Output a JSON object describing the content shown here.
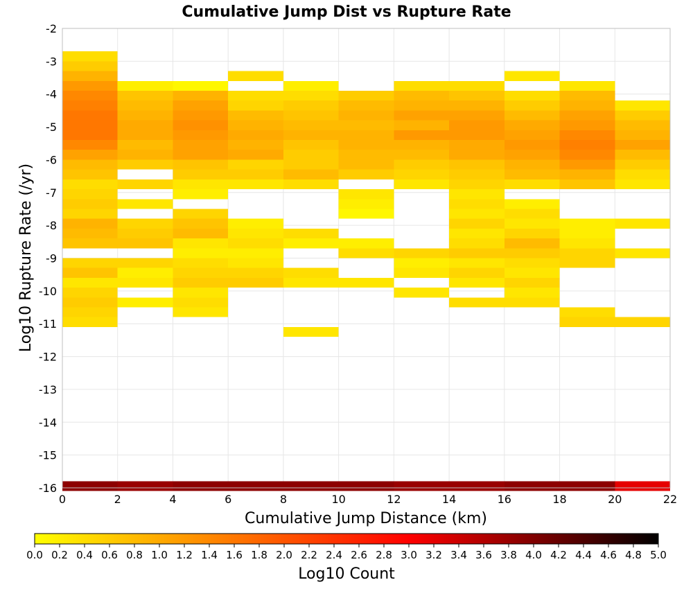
{
  "chart_data": {
    "type": "heatmap",
    "title": "Cumulative Jump Dist vs Rupture Rate",
    "xlabel": "Cumulative Jump Distance (km)",
    "ylabel": "Log10 Rupture Rate (/yr)",
    "xlim": [
      0,
      22
    ],
    "ylim": [
      -16,
      -2
    ],
    "xticks": [
      "0",
      "2",
      "4",
      "6",
      "8",
      "10",
      "12",
      "14",
      "16",
      "18",
      "20",
      "22"
    ],
    "yticks": [
      "-2",
      "-3",
      "-4",
      "-5",
      "-6",
      "-7",
      "-8",
      "-9",
      "-10",
      "-11",
      "-12",
      "-13",
      "-14",
      "-15",
      "-16"
    ],
    "x_bin_width": 2,
    "y_bin_height": 0.3,
    "grid": true,
    "colorbar": {
      "label": "Log10 Count",
      "range": [
        0,
        5
      ],
      "ticks": [
        "0.0",
        "0.2",
        "0.4",
        "0.6",
        "0.8",
        "1.0",
        "1.2",
        "1.4",
        "1.6",
        "1.8",
        "2.0",
        "2.2",
        "2.4",
        "2.6",
        "2.8",
        "3.0",
        "3.2",
        "3.4",
        "3.6",
        "3.8",
        "4.0",
        "4.2",
        "4.4",
        "4.6",
        "4.8",
        "5.0"
      ],
      "colors": [
        "#ffff00",
        "#ffaa00",
        "#ff5500",
        "#ff0000",
        "#800000",
        "#000000"
      ]
    },
    "columns": [
      {
        "x": [
          0,
          2
        ],
        "cells": [
          [
            -2.85,
            0.4
          ],
          [
            -3.15,
            0.6
          ],
          [
            -3.45,
            0.9
          ],
          [
            -3.75,
            1.2
          ],
          [
            -4.05,
            1.4
          ],
          [
            -4.35,
            1.5
          ],
          [
            -4.65,
            1.6
          ],
          [
            -4.95,
            1.6
          ],
          [
            -5.25,
            1.6
          ],
          [
            -5.55,
            1.4
          ],
          [
            -5.85,
            1.1
          ],
          [
            -6.15,
            0.8
          ],
          [
            -6.45,
            0.7
          ],
          [
            -6.75,
            0.4
          ],
          [
            -7.05,
            0.5
          ],
          [
            -7.35,
            0.6
          ],
          [
            -7.65,
            0.5
          ],
          [
            -7.95,
            0.9
          ],
          [
            -8.25,
            0.8
          ],
          [
            -8.55,
            0.7
          ],
          [
            -9.15,
            0.5
          ],
          [
            -9.45,
            0.7
          ],
          [
            -9.75,
            0.3
          ],
          [
            -10.05,
            0.5
          ],
          [
            -10.35,
            0.6
          ],
          [
            -10.65,
            0.5
          ],
          [
            -10.95,
            0.4
          ],
          [
            -15.95,
            3.9
          ]
        ]
      },
      {
        "x": [
          2,
          4
        ],
        "cells": [
          [
            -3.75,
            0.2
          ],
          [
            -4.05,
            0.7
          ],
          [
            -4.35,
            0.8
          ],
          [
            -4.65,
            0.9
          ],
          [
            -4.95,
            1.0
          ],
          [
            -5.25,
            1.0
          ],
          [
            -5.55,
            0.8
          ],
          [
            -5.85,
            0.9
          ],
          [
            -6.15,
            0.6
          ],
          [
            -6.75,
            0.5
          ],
          [
            -7.35,
            0.3
          ],
          [
            -7.95,
            0.5
          ],
          [
            -8.25,
            0.6
          ],
          [
            -8.55,
            0.7
          ],
          [
            -9.15,
            0.5
          ],
          [
            -9.45,
            0.2
          ],
          [
            -9.75,
            0.3
          ],
          [
            -10.35,
            0.2
          ],
          [
            -15.95,
            3.8
          ]
        ]
      },
      {
        "x": [
          4,
          6
        ],
        "cells": [
          [
            -3.75,
            0.1
          ],
          [
            -4.05,
            0.9
          ],
          [
            -4.35,
            1.1
          ],
          [
            -4.65,
            1.2
          ],
          [
            -4.95,
            1.3
          ],
          [
            -5.25,
            1.2
          ],
          [
            -5.55,
            1.1
          ],
          [
            -5.85,
            1.1
          ],
          [
            -6.15,
            0.7
          ],
          [
            -6.45,
            0.6
          ],
          [
            -6.75,
            0.3
          ],
          [
            -7.05,
            0.2
          ],
          [
            -7.65,
            0.5
          ],
          [
            -7.95,
            0.7
          ],
          [
            -8.25,
            0.8
          ],
          [
            -8.55,
            0.3
          ],
          [
            -8.85,
            0.2
          ],
          [
            -9.15,
            0.4
          ],
          [
            -9.45,
            0.5
          ],
          [
            -9.75,
            0.6
          ],
          [
            -10.05,
            0.3
          ],
          [
            -10.35,
            0.4
          ],
          [
            -10.65,
            0.3
          ],
          [
            -15.95,
            3.9
          ]
        ]
      },
      {
        "x": [
          6,
          8
        ],
        "cells": [
          [
            -3.45,
            0.4
          ],
          [
            -4.05,
            0.4
          ],
          [
            -4.35,
            0.5
          ],
          [
            -4.65,
            0.8
          ],
          [
            -4.95,
            0.9
          ],
          [
            -5.25,
            1.0
          ],
          [
            -5.55,
            0.9
          ],
          [
            -5.85,
            1.0
          ],
          [
            -6.15,
            0.5
          ],
          [
            -6.45,
            0.6
          ],
          [
            -6.75,
            0.3
          ],
          [
            -7.95,
            0.2
          ],
          [
            -8.25,
            0.3
          ],
          [
            -8.55,
            0.4
          ],
          [
            -8.85,
            0.2
          ],
          [
            -9.15,
            0.3
          ],
          [
            -9.45,
            0.5
          ],
          [
            -9.75,
            0.6
          ],
          [
            -15.95,
            3.9
          ]
        ]
      },
      {
        "x": [
          8,
          10
        ],
        "cells": [
          [
            -3.75,
            0.2
          ],
          [
            -4.05,
            0.4
          ],
          [
            -4.35,
            0.6
          ],
          [
            -4.65,
            0.7
          ],
          [
            -4.95,
            0.8
          ],
          [
            -5.25,
            0.9
          ],
          [
            -5.55,
            0.7
          ],
          [
            -5.85,
            0.6
          ],
          [
            -6.15,
            0.6
          ],
          [
            -6.45,
            0.8
          ],
          [
            -6.75,
            0.4
          ],
          [
            -8.25,
            0.4
          ],
          [
            -8.55,
            0.2
          ],
          [
            -9.45,
            0.4
          ],
          [
            -9.75,
            0.3
          ],
          [
            -11.25,
            0.3
          ],
          [
            -15.95,
            3.9
          ]
        ]
      },
      {
        "x": [
          10,
          12
        ],
        "cells": [
          [
            -4.05,
            0.6
          ],
          [
            -4.35,
            0.8
          ],
          [
            -4.65,
            0.9
          ],
          [
            -4.95,
            0.8
          ],
          [
            -5.25,
            0.9
          ],
          [
            -5.55,
            0.9
          ],
          [
            -5.85,
            0.8
          ],
          [
            -6.15,
            0.8
          ],
          [
            -6.45,
            0.6
          ],
          [
            -7.05,
            0.3
          ],
          [
            -7.35,
            0.2
          ],
          [
            -7.65,
            0.1
          ],
          [
            -8.55,
            0.2
          ],
          [
            -8.85,
            0.4
          ],
          [
            -9.75,
            0.3
          ],
          [
            -15.95,
            3.9
          ]
        ]
      },
      {
        "x": [
          12,
          14
        ],
        "cells": [
          [
            -3.75,
            0.4
          ],
          [
            -4.05,
            0.8
          ],
          [
            -4.35,
            0.9
          ],
          [
            -4.65,
            1.1
          ],
          [
            -4.95,
            0.9
          ],
          [
            -5.25,
            1.2
          ],
          [
            -5.55,
            0.9
          ],
          [
            -5.85,
            0.8
          ],
          [
            -6.15,
            0.6
          ],
          [
            -6.45,
            0.5
          ],
          [
            -6.75,
            0.3
          ],
          [
            -8.85,
            0.5
          ],
          [
            -9.15,
            0.2
          ],
          [
            -9.45,
            0.3
          ],
          [
            -10.05,
            0.3
          ],
          [
            -15.95,
            3.8
          ]
        ]
      },
      {
        "x": [
          14,
          16
        ],
        "cells": [
          [
            -3.75,
            0.4
          ],
          [
            -4.05,
            0.7
          ],
          [
            -4.35,
            0.9
          ],
          [
            -4.65,
            1.1
          ],
          [
            -4.95,
            1.2
          ],
          [
            -5.25,
            1.2
          ],
          [
            -5.55,
            1.0
          ],
          [
            -5.85,
            1.0
          ],
          [
            -6.15,
            0.7
          ],
          [
            -6.45,
            0.6
          ],
          [
            -6.75,
            0.5
          ],
          [
            -7.05,
            0.3
          ],
          [
            -7.35,
            0.4
          ],
          [
            -7.65,
            0.3
          ],
          [
            -7.95,
            0.5
          ],
          [
            -8.25,
            0.3
          ],
          [
            -8.55,
            0.4
          ],
          [
            -8.85,
            0.6
          ],
          [
            -9.15,
            0.3
          ],
          [
            -9.45,
            0.5
          ],
          [
            -9.75,
            0.3
          ],
          [
            -10.35,
            0.4
          ],
          [
            -15.95,
            3.8
          ]
        ]
      },
      {
        "x": [
          16,
          18
        ],
        "cells": [
          [
            -3.45,
            0.3
          ],
          [
            -4.05,
            0.4
          ],
          [
            -4.35,
            0.6
          ],
          [
            -4.65,
            0.8
          ],
          [
            -4.95,
            1.0
          ],
          [
            -5.25,
            1.1
          ],
          [
            -5.55,
            1.2
          ],
          [
            -5.85,
            1.1
          ],
          [
            -6.15,
            0.9
          ],
          [
            -6.45,
            0.8
          ],
          [
            -6.75,
            0.4
          ],
          [
            -7.35,
            0.2
          ],
          [
            -7.65,
            0.4
          ],
          [
            -7.95,
            0.3
          ],
          [
            -8.25,
            0.5
          ],
          [
            -8.55,
            0.8
          ],
          [
            -8.85,
            0.6
          ],
          [
            -9.15,
            0.4
          ],
          [
            -9.45,
            0.3
          ],
          [
            -9.75,
            0.5
          ],
          [
            -10.05,
            0.3
          ],
          [
            -10.35,
            0.4
          ],
          [
            -15.95,
            3.9
          ]
        ]
      },
      {
        "x": [
          18,
          20
        ],
        "cells": [
          [
            -3.75,
            0.3
          ],
          [
            -4.05,
            0.8
          ],
          [
            -4.35,
            0.9
          ],
          [
            -4.65,
            1.1
          ],
          [
            -4.95,
            1.2
          ],
          [
            -5.25,
            1.4
          ],
          [
            -5.55,
            1.5
          ],
          [
            -5.85,
            1.4
          ],
          [
            -6.15,
            1.2
          ],
          [
            -6.45,
            0.9
          ],
          [
            -6.75,
            0.7
          ],
          [
            -7.95,
            0.2
          ],
          [
            -8.25,
            0.2
          ],
          [
            -8.55,
            0.3
          ],
          [
            -8.85,
            0.5
          ],
          [
            -9.15,
            0.5
          ],
          [
            -10.65,
            0.4
          ],
          [
            -10.95,
            0.5
          ],
          [
            -15.95,
            3.9
          ]
        ]
      },
      {
        "x": [
          20,
          22
        ],
        "cells": [
          [
            -4.35,
            0.3
          ],
          [
            -4.65,
            0.6
          ],
          [
            -4.95,
            0.8
          ],
          [
            -5.25,
            0.9
          ],
          [
            -5.55,
            1.1
          ],
          [
            -5.85,
            0.8
          ],
          [
            -6.15,
            0.6
          ],
          [
            -6.45,
            0.4
          ],
          [
            -6.75,
            0.3
          ],
          [
            -7.95,
            0.3
          ],
          [
            -8.85,
            0.3
          ],
          [
            -10.95,
            0.5
          ],
          [
            -15.95,
            3.2
          ]
        ]
      }
    ]
  }
}
